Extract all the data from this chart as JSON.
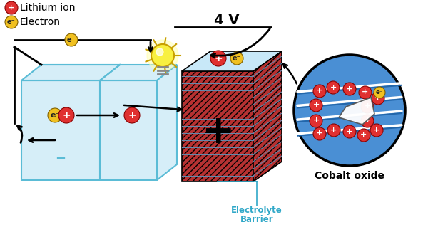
{
  "bg_color": "#ffffff",
  "box_edge": "#5bbcd6",
  "box_face": "#d6eef8",
  "hatch_red": "#cc3333",
  "cobalt_blue": "#4a8fd4",
  "cobalt_blue_light": "#6aaee0",
  "red_ion": "#e03030",
  "yellow_electron": "#f0c020",
  "text_black": "#111111",
  "text_cyan": "#30a8c8",
  "arrow_color": "#111111",
  "label_4v": "4 V",
  "label_lithium": "Lithium ion",
  "label_electron": "Electron",
  "label_cobalt": "Cobalt oxide",
  "label_electrolyte": "Electrolyte",
  "label_barrier": "Barrier"
}
